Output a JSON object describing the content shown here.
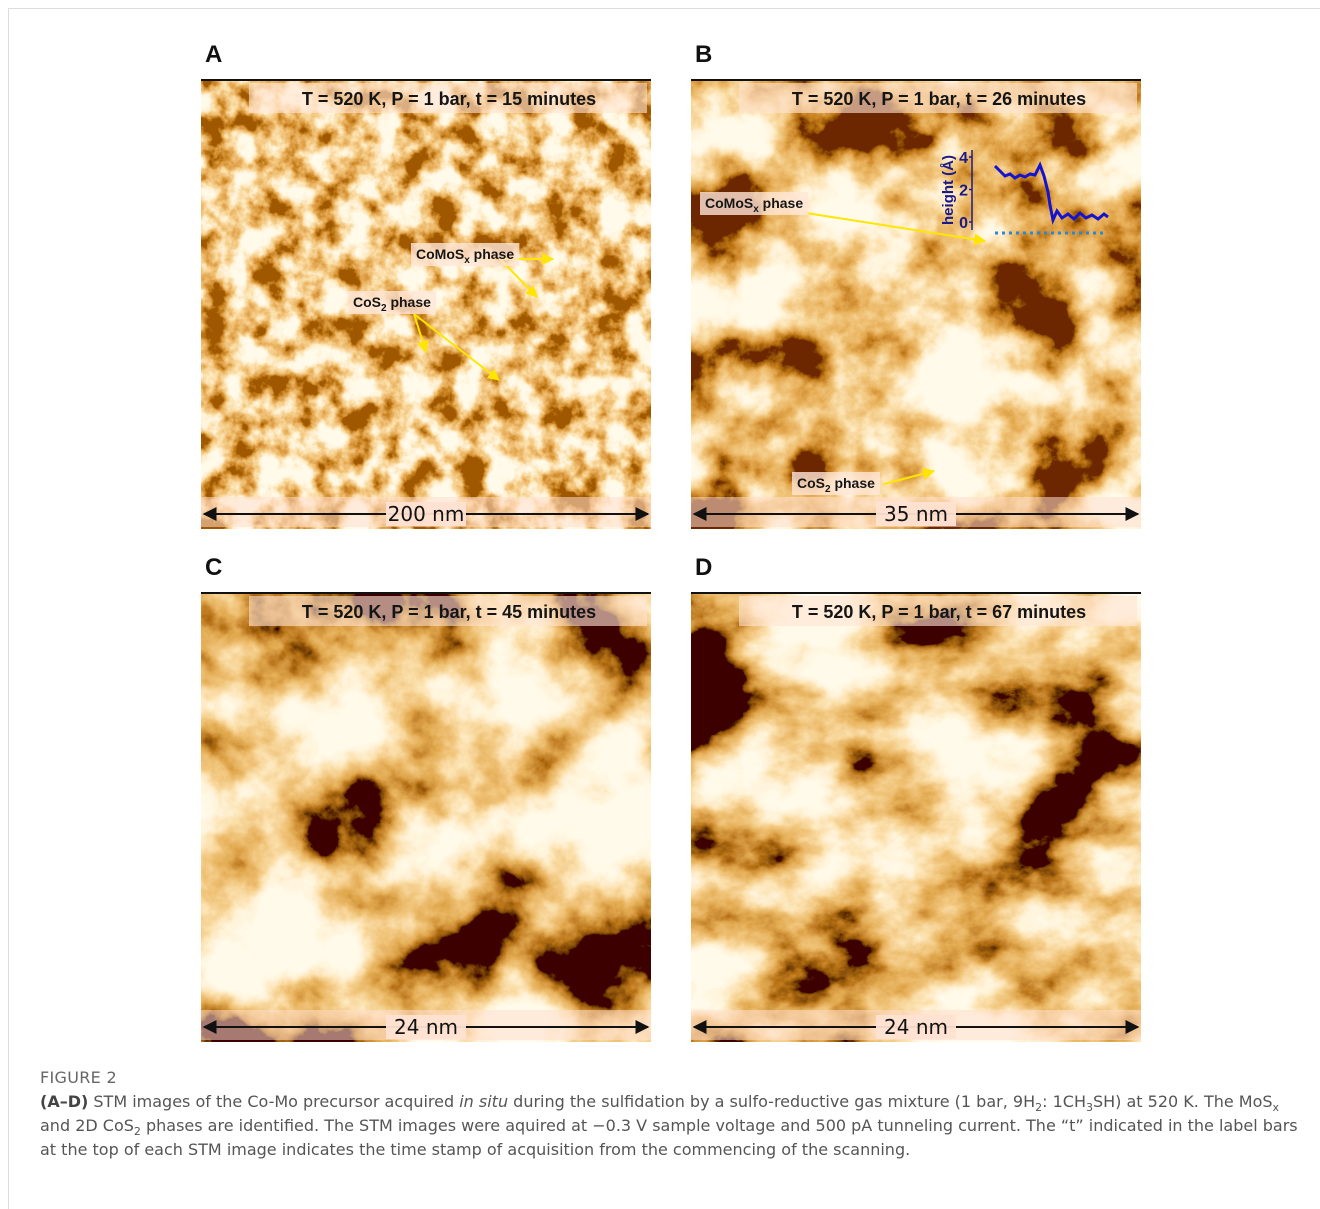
{
  "panels": [
    {
      "letter": "A",
      "condition": "T = 520 K, P = 1 bar, t = 15 minutes",
      "scale": "200 nm",
      "labels": [
        {
          "main": "CoMoS",
          "sub": "x",
          "tail": " phase"
        },
        {
          "main": "CoS",
          "sub": "2",
          "tail": " phase"
        }
      ]
    },
    {
      "letter": "B",
      "condition": "T = 520 K, P = 1 bar, t = 26 minutes",
      "scale": "35 nm",
      "labels": [
        {
          "main": "CoMoS",
          "sub": "x",
          "tail": " phase"
        },
        {
          "main": "CoS",
          "sub": "2",
          "tail": " phase"
        }
      ],
      "height_axis": {
        "label": "height (Å)",
        "ticks": [
          4,
          2,
          0
        ]
      }
    },
    {
      "letter": "C",
      "condition": "T = 520 K, P = 1 bar, t = 45 minutes",
      "scale": "24 nm",
      "labels": []
    },
    {
      "letter": "D",
      "condition": "T = 520 K, P = 1 bar, t = 67 minutes",
      "scale": "24 nm",
      "labels": []
    }
  ],
  "caption": {
    "figure": "FIGURE 2",
    "lead": "(A–D)",
    "runs": [
      " STM images of the Co-Mo precursor acquired ",
      "in situ",
      " during the sulfidation by a sulfo-reductive gas mixture (1 bar, 9H",
      "2",
      ": 1CH",
      "3",
      "SH) at 520 K. The MoS",
      "x",
      " and 2D CoS",
      "2",
      " phases are identified. The STM images were aquired at −0.3 V sample voltage and 500 pA tunneling current. The “t” indicated in the label bars at the top of each STM image indicates the time stamp of acquisition from the commencing of the scanning."
    ]
  }
}
